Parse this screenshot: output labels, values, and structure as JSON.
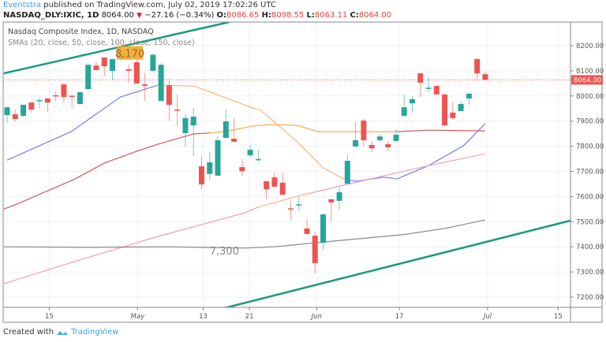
{
  "header": {
    "author": "Eventstra",
    "published": "published on TradingView.com, July 02, 2019 17:02:26 UTC",
    "symbol": "NASDAQ_DLY:IXIC, 1D",
    "last": "8064.00",
    "change": "−27.16 (−0.34%)",
    "o_label": "O:",
    "o": "8086.65",
    "h_label": "H:",
    "h": "8098.55",
    "l_label": "L:",
    "l": "8063.11",
    "c_label": "C:",
    "c": "8064.00"
  },
  "legend": {
    "title": "Nasdaq Composite Index, 1D, NASDAQ",
    "indicators": "SMAs (20, close, 50, close, 100, close, 150, close)"
  },
  "footer": {
    "created": "Created with",
    "brand": "TradingView"
  },
  "colors": {
    "up": "#26a69a",
    "down": "#ef5350",
    "trend": "#1a9a80",
    "label_bg": "#f5a623"
  },
  "chart_data": {
    "type": "candlestick",
    "title": "Nasdaq Composite Index, 1D, NASDAQ",
    "ylim": [
      7160,
      8290
    ],
    "yticks": [
      "8200.00",
      "8100.00",
      "8000.00",
      "7900.00",
      "7800.00",
      "7700.00",
      "7600.00",
      "7500.00",
      "7400.00",
      "7300.00",
      "7200.00"
    ],
    "ytick_values": [
      8200,
      8100,
      8000,
      7900,
      7800,
      7700,
      7600,
      7500,
      7400,
      7300,
      7200
    ],
    "xlim": [
      -0.4,
      69.8
    ],
    "xticks": [
      {
        "label": "15",
        "index": 5.2
      },
      {
        "label": "May",
        "index": 16.1
      },
      {
        "label": "13",
        "index": 24.2
      },
      {
        "label": "21",
        "index": 29.9
      },
      {
        "label": "Jun",
        "index": 38.2
      },
      {
        "label": "17",
        "index": 48.4
      },
      {
        "label": "Jul",
        "index": 59.3
      },
      {
        "label": "15",
        "index": 68
      }
    ],
    "last_price": 8064,
    "last_price_label": "8064.00",
    "ohlc": [
      [
        7924,
        7958,
        7893,
        7955
      ],
      [
        7927,
        7946,
        7899,
        7908
      ],
      [
        7921,
        7965,
        7915,
        7965
      ],
      [
        7974,
        7974,
        7933,
        7946
      ],
      [
        7981,
        7993,
        7952,
        7984
      ],
      [
        7990,
        7993,
        7937,
        7974
      ],
      [
        8003,
        8018,
        7980,
        8000
      ],
      [
        8046,
        8053,
        7974,
        7996
      ],
      [
        8001,
        8003,
        7952,
        7999
      ],
      [
        7968,
        8018,
        7968,
        8015
      ],
      [
        8027,
        8131,
        8027,
        8124
      ],
      [
        8121,
        8137,
        8103,
        8103
      ],
      [
        8153,
        8153,
        8078,
        8118
      ],
      [
        8100,
        8147,
        8065,
        8147
      ],
      [
        8150,
        8184,
        8140,
        8162
      ],
      [
        8106,
        8125,
        8053,
        8100
      ],
      [
        8134,
        8147,
        8050,
        8050
      ],
      [
        8046,
        8093,
        7980,
        8040
      ],
      [
        8100,
        8170,
        8097,
        8164
      ],
      [
        7980,
        8131,
        7980,
        8124
      ],
      [
        8043,
        8068,
        7902,
        7965
      ],
      [
        7946,
        8006,
        7880,
        7943
      ],
      [
        7852,
        7930,
        7799,
        7912
      ],
      [
        7883,
        7952,
        7761,
        7918
      ],
      [
        7720,
        7761,
        7629,
        7648
      ],
      [
        7690,
        7777,
        7667,
        7736
      ],
      [
        7683,
        7839,
        7683,
        7824
      ],
      [
        7833,
        7946,
        7833,
        7899
      ],
      [
        7830,
        7912,
        7815,
        7818
      ],
      [
        7717,
        7749,
        7683,
        7701
      ],
      [
        7764,
        7805,
        7759,
        7786
      ],
      [
        7747,
        7786,
        7739,
        7749
      ],
      [
        7661,
        7661,
        7589,
        7629
      ],
      [
        7676,
        7695,
        7639,
        7639
      ],
      [
        7655,
        7695,
        7607,
        7607
      ],
      [
        7553,
        7582,
        7507,
        7551
      ],
      [
        7566,
        7598,
        7545,
        7569
      ],
      [
        7473,
        7510,
        7451,
        7451
      ],
      [
        7444,
        7460,
        7294,
        7335
      ],
      [
        7416,
        7529,
        7388,
        7529
      ],
      [
        7589,
        7589,
        7501,
        7577
      ],
      [
        7583,
        7636,
        7548,
        7617
      ],
      [
        7651,
        7767,
        7651,
        7742
      ],
      [
        7799,
        7896,
        7799,
        7824
      ],
      [
        7902,
        7912,
        7799,
        7824
      ],
      [
        7805,
        7821,
        7777,
        7792
      ],
      [
        7824,
        7849,
        7821,
        7839
      ],
      [
        7808,
        7821,
        7780,
        7796
      ],
      [
        7821,
        7868,
        7818,
        7846
      ],
      [
        7921,
        8006,
        7920,
        7955
      ],
      [
        7971,
        7999,
        7934,
        7987
      ],
      [
        8090,
        8090,
        7996,
        8053
      ],
      [
        8030,
        8075,
        8015,
        8033
      ],
      [
        8040,
        8043,
        8006,
        8006
      ],
      [
        8006,
        8006,
        7883,
        7883
      ],
      [
        7934,
        7977,
        7905,
        7912
      ],
      [
        7940,
        7977,
        7940,
        7968
      ],
      [
        7990,
        8011,
        7965,
        8009
      ],
      [
        8147,
        8150,
        8059,
        8090
      ],
      [
        8086.65,
        8098.55,
        8063.11,
        8064
      ]
    ],
    "smas": [
      {
        "name": "SMA 20",
        "segments": [
          {
            "color": "#7b7bf0",
            "points": [
              [
                0,
                7745
              ],
              [
                7.9,
                7858
              ],
              [
                14,
                7996
              ],
              [
                18.6,
                8043
              ]
            ]
          },
          {
            "color": "#ffb37a",
            "points": [
              [
                18.6,
                8043
              ],
              [
                23,
                8040
              ],
              [
                26.7,
                7996
              ],
              [
                30.3,
                7952
              ],
              [
                31.3,
                7943
              ],
              [
                35.8,
                7818
              ],
              [
                39,
                7714
              ],
              [
                41.7,
                7667
              ]
            ]
          },
          {
            "color": "#7b7bf0",
            "points": [
              [
                41.7,
                7667
              ],
              [
                43.2,
                7661
              ],
              [
                46.5,
                7677
              ],
              [
                48.1,
                7670
              ],
              [
                52,
                7723
              ],
              [
                56.3,
                7802
              ],
              [
                59,
                7890
              ]
            ]
          }
        ]
      },
      {
        "name": "SMA 50",
        "segments": [
          {
            "color": "#d05858",
            "points": [
              [
                -0.4,
                7550
              ],
              [
                1,
                7567
              ],
              [
                5,
                7623
              ],
              [
                8.2,
                7667
              ],
              [
                12,
                7733
              ],
              [
                16,
                7780
              ],
              [
                18.6,
                7808
              ],
              [
                23,
                7849
              ],
              [
                25,
                7853
              ]
            ]
          },
          {
            "color": "#ffa94d",
            "points": [
              [
                25,
                7853
              ],
              [
                26.7,
                7858
              ],
              [
                30.3,
                7880
              ],
              [
                32.5,
                7886
              ],
              [
                35.8,
                7883
              ],
              [
                38.4,
                7858
              ],
              [
                42.3,
                7858
              ],
              [
                48.1,
                7858
              ]
            ]
          },
          {
            "color": "#d05858",
            "points": [
              [
                48.1,
                7858
              ],
              [
                52,
                7864
              ],
              [
                59,
                7861
              ]
            ]
          }
        ]
      },
      {
        "name": "SMA 100",
        "segments": [
          {
            "color": "#f0a0b0",
            "points": [
              [
                -0.4,
                7253
              ],
              [
                8.9,
                7347
              ],
              [
                18.6,
                7441
              ],
              [
                29.3,
                7535
              ],
              [
                31,
                7558
              ]
            ]
          },
          {
            "color": "#ffb37a",
            "points": [
              [
                31,
                7558
              ],
              [
                35.8,
                7601
              ],
              [
                37,
                7610
              ]
            ]
          },
          {
            "color": "#f0a0b0",
            "points": [
              [
                37,
                7610
              ],
              [
                42.3,
                7651
              ],
              [
                52,
                7723
              ],
              [
                59,
                7770
              ]
            ]
          }
        ]
      },
      {
        "name": "SMA 150",
        "segments": [
          {
            "color": "#888888",
            "points": [
              [
                -0.4,
                7400
              ],
              [
                10,
                7398
              ],
              [
                20,
                7400
              ],
              [
                29.3,
                7395
              ],
              [
                33,
                7400
              ],
              [
                39,
                7419
              ],
              [
                48.8,
                7448
              ],
              [
                54,
                7473
              ],
              [
                59,
                7507
              ]
            ]
          }
        ]
      }
    ],
    "trendlines": [
      {
        "points": [
          [
            -0.4,
            8090
          ],
          [
            27.4,
            8294
          ]
        ]
      },
      {
        "points": [
          [
            26.4,
            7153
          ],
          [
            69.5,
            7504
          ]
        ]
      }
    ],
    "annotations": [
      {
        "text": "8,170",
        "index": 15,
        "price": 8170,
        "style": "box"
      },
      {
        "text": "7,300",
        "index": 25,
        "price": 7370,
        "style": "text"
      }
    ]
  }
}
